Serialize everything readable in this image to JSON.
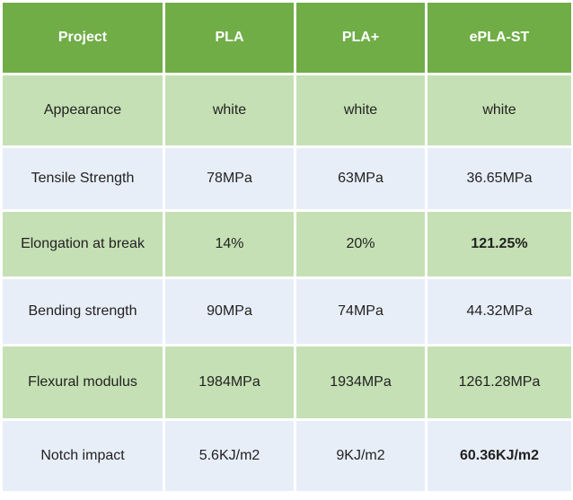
{
  "header": {
    "col0": "Project",
    "col1": "PLA",
    "col2": "PLA+",
    "col3": "ePLA-ST"
  },
  "rows": [
    {
      "label": "Appearance",
      "pla": "white",
      "pla_plus": "white",
      "epla_st": "white"
    },
    {
      "label": "Tensile Strength",
      "pla": "78MPa",
      "pla_plus": "63MPa",
      "epla_st": "36.65MPa"
    },
    {
      "label": "Elongation at break",
      "pla": "14%",
      "pla_plus": "20%",
      "epla_st": "121.25%"
    },
    {
      "label": "Bending strength",
      "pla": "90MPa",
      "pla_plus": "74MPa",
      "epla_st": "44.32MPa"
    },
    {
      "label": "Flexural modulus",
      "pla": "1984MPa",
      "pla_plus": "1934MPa",
      "epla_st": "1261.28MPa"
    },
    {
      "label": "Notch impact",
      "pla": "5.6KJ/m2",
      "pla_plus": "9KJ/m2",
      "epla_st": "60.36KJ/m2"
    }
  ],
  "colors": {
    "header_bg": "#70ad47",
    "green_row_bg": "#c5e0b4",
    "blue_row_bg": "#e8eef8"
  }
}
